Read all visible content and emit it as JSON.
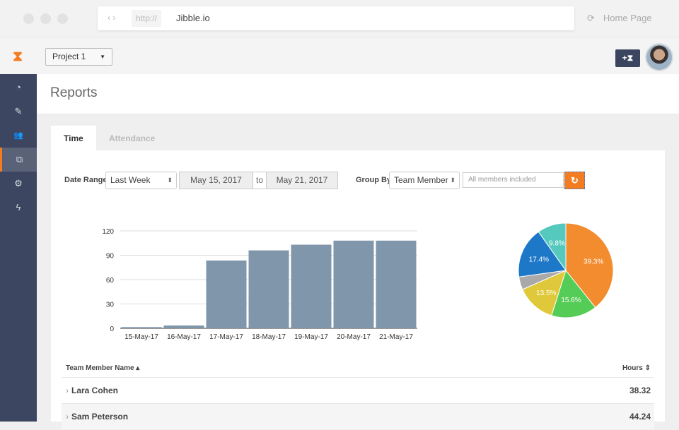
{
  "browser": {
    "nav": "‹ ›",
    "protocol": "http://",
    "host": "Jibble.io",
    "home": "Home Page",
    "reload_icon": "⟳"
  },
  "header": {
    "logo": "⧗",
    "project": "Project 1",
    "clock_button": "+⧗"
  },
  "sidebar": {
    "items": [
      {
        "name": "dashboard",
        "glyph": "◔"
      },
      {
        "name": "timesheets",
        "glyph": "✎"
      },
      {
        "name": "people",
        "glyph": "👥"
      },
      {
        "name": "reports",
        "glyph": "⧉",
        "active": true
      },
      {
        "name": "settings",
        "glyph": "⚙"
      },
      {
        "name": "integrations",
        "glyph": "ϟ"
      }
    ]
  },
  "page": {
    "title": "Reports"
  },
  "tabs": [
    "Time",
    "Attendance"
  ],
  "filters": {
    "date_range_label": "Date Range",
    "date_range": "Last Week",
    "from": "May 15, 2017",
    "to_label": "to",
    "to": "May 21, 2017",
    "group_by_label": "Group By",
    "group_by": "Team Member",
    "members_placeholder": "All members included",
    "refresh_icon": "↻"
  },
  "chart_data": [
    {
      "type": "bar",
      "categories": [
        "15-May-17",
        "16-May-17",
        "17-May-17",
        "18-May-17",
        "19-May-17",
        "20-May-17",
        "21-May-17"
      ],
      "values": [
        1.5,
        3.5,
        83.5,
        96,
        103,
        108,
        108
      ],
      "ylim": [
        0,
        120
      ],
      "yticks": [
        0,
        30,
        60,
        90,
        120
      ],
      "color": "#8096aa"
    },
    {
      "type": "pie",
      "values": [
        39.3,
        15.6,
        13.5,
        4.4,
        17.4,
        9.8
      ],
      "labels": [
        "39.3%",
        "15.6%",
        "13.5%",
        "",
        "17.4%",
        "9.8%"
      ],
      "colors": [
        "#f28c2e",
        "#55cc55",
        "#dfc93b",
        "#a9a9a9",
        "#1e78c8",
        "#55c9bd"
      ]
    }
  ],
  "table": {
    "headers": {
      "name": "Team Member Name ▴",
      "hours": "Hours ⇕"
    },
    "rows": [
      {
        "name": "Lara Cohen",
        "hours": "38.32"
      },
      {
        "name": "Sam Peterson",
        "hours": "44.24"
      }
    ]
  }
}
